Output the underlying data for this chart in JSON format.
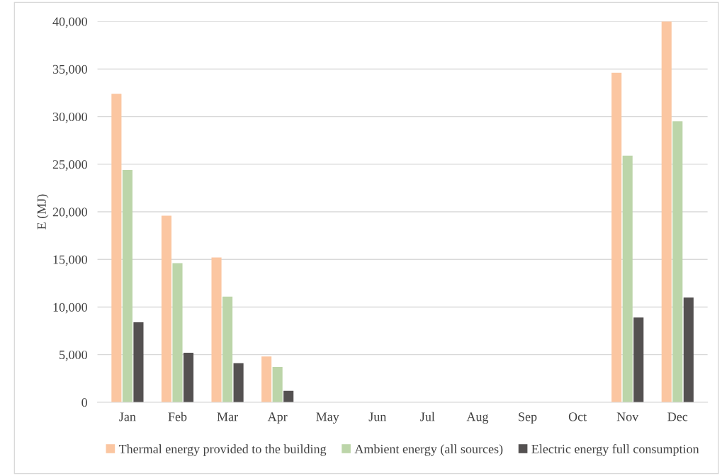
{
  "chart_data": {
    "type": "bar",
    "ylabel": "E (MJ)",
    "categories": [
      "Jan",
      "Feb",
      "Mar",
      "Apr",
      "May",
      "Jun",
      "Jul",
      "Aug",
      "Sep",
      "Oct",
      "Nov",
      "Dec"
    ],
    "series": [
      {
        "name": "Thermal energy provided to the building",
        "color": "#fbc6a1",
        "values": [
          32400,
          19600,
          15200,
          4800,
          0,
          0,
          0,
          0,
          null,
          0,
          34600,
          40000
        ]
      },
      {
        "name": "Ambient energy (all sources)",
        "color": "#bcd5a9",
        "values": [
          24400,
          14600,
          11100,
          3700,
          0,
          0,
          0,
          0,
          null,
          0,
          25900,
          29500
        ]
      },
      {
        "name": "Electric energy full consumption",
        "color": "#545151",
        "values": [
          8400,
          5200,
          4100,
          1200,
          0,
          0,
          0,
          0,
          null,
          0,
          8900,
          11000
        ]
      }
    ],
    "ylim": [
      0,
      40000
    ],
    "yticks": [
      {
        "value": 0,
        "label": "0"
      },
      {
        "value": 5000,
        "label": "5,000"
      },
      {
        "value": 10000,
        "label": "10,000"
      },
      {
        "value": 15000,
        "label": "15,000"
      },
      {
        "value": 20000,
        "label": "20,000"
      },
      {
        "value": 25000,
        "label": "25,000"
      },
      {
        "value": 30000,
        "label": "30,000"
      },
      {
        "value": 35000,
        "label": "35,000"
      },
      {
        "value": 40000,
        "label": "40,000"
      }
    ],
    "grid": "y",
    "legend": "bottom"
  }
}
